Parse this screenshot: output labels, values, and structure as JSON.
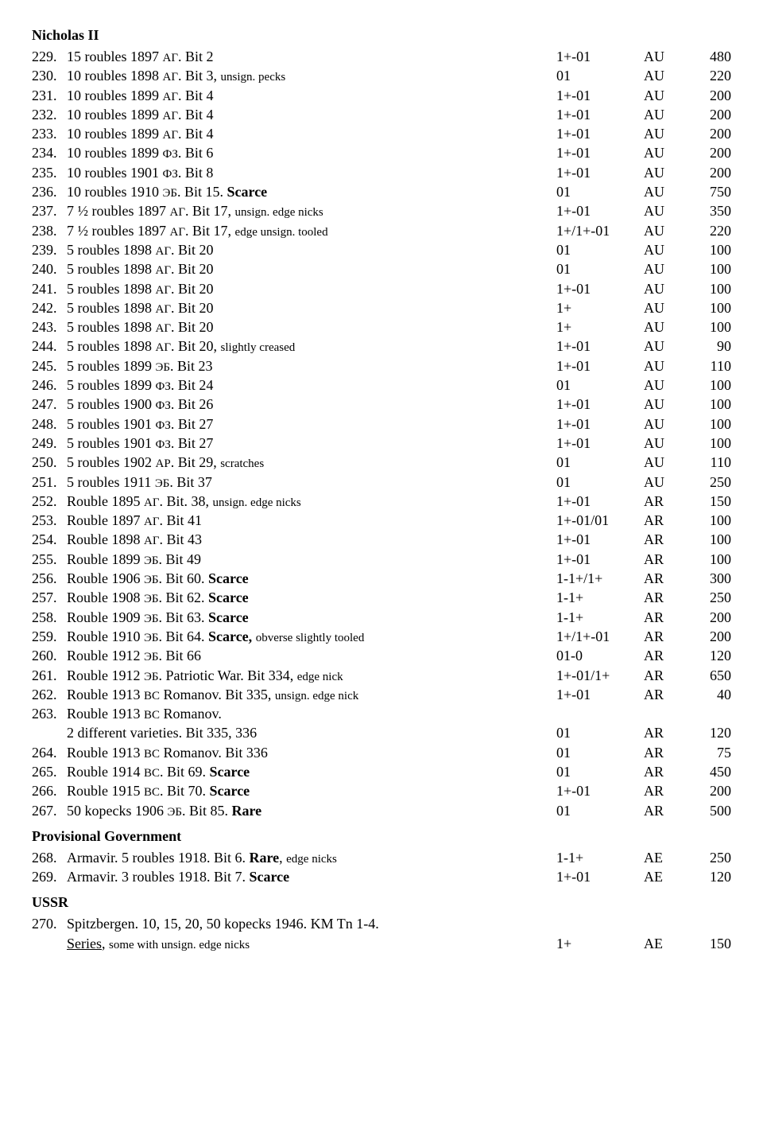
{
  "sections": [
    {
      "heading": "Nicholas II",
      "rows": [
        {
          "n": "229.",
          "desc": [
            {
              "t": "15 roubles 1897 "
            },
            {
              "t": "АГ",
              "small": true
            },
            {
              "t": ". Bit 2"
            }
          ],
          "g": "1+-01",
          "m": "AU",
          "p": "480"
        },
        {
          "n": "230.",
          "desc": [
            {
              "t": "10 roubles 1898 "
            },
            {
              "t": "АГ",
              "small": true
            },
            {
              "t": ". Bit 3, "
            },
            {
              "t": "unsign. pecks",
              "small": true
            }
          ],
          "g": "01",
          "m": "AU",
          "p": "220"
        },
        {
          "n": "231.",
          "desc": [
            {
              "t": "10 roubles 1899 "
            },
            {
              "t": "АГ",
              "small": true
            },
            {
              "t": ". Bit 4"
            }
          ],
          "g": "1+-01",
          "m": "AU",
          "p": "200"
        },
        {
          "n": "232.",
          "desc": [
            {
              "t": "10 roubles 1899 "
            },
            {
              "t": "АГ",
              "small": true
            },
            {
              "t": ". Bit 4"
            }
          ],
          "g": "1+-01",
          "m": "AU",
          "p": "200"
        },
        {
          "n": "233.",
          "desc": [
            {
              "t": "10 roubles 1899 "
            },
            {
              "t": "АГ",
              "small": true
            },
            {
              "t": ". Bit 4"
            }
          ],
          "g": "1+-01",
          "m": "AU",
          "p": "200"
        },
        {
          "n": "234.",
          "desc": [
            {
              "t": "10 roubles 1899 "
            },
            {
              "t": "ФЗ",
              "small": true
            },
            {
              "t": ". Bit 6"
            }
          ],
          "g": "1+-01",
          "m": "AU",
          "p": "200"
        },
        {
          "n": "235.",
          "desc": [
            {
              "t": "10 roubles 1901 "
            },
            {
              "t": "ФЗ",
              "small": true
            },
            {
              "t": ". Bit 8"
            }
          ],
          "g": "1+-01",
          "m": "AU",
          "p": "200"
        },
        {
          "n": "236.",
          "desc": [
            {
              "t": "10 roubles 1910 "
            },
            {
              "t": "ЭБ",
              "small": true
            },
            {
              "t": ". Bit 15. "
            },
            {
              "t": "Scarce",
              "b": true
            }
          ],
          "g": "01",
          "m": "AU",
          "p": "750"
        },
        {
          "n": "237.",
          "desc": [
            {
              "t": "7 ½ roubles 1897 "
            },
            {
              "t": "АГ",
              "small": true
            },
            {
              "t": ". Bit 17, "
            },
            {
              "t": "unsign. edge nicks",
              "small": true
            }
          ],
          "g": "1+-01",
          "m": "AU",
          "p": "350"
        },
        {
          "n": "238.",
          "desc": [
            {
              "t": "7 ½ roubles 1897 "
            },
            {
              "t": "АГ",
              "small": true
            },
            {
              "t": ". Bit 17, "
            },
            {
              "t": "edge unsign. tooled",
              "small": true
            }
          ],
          "g": "1+/1+-01",
          "m": "AU",
          "p": "220"
        },
        {
          "n": "239.",
          "desc": [
            {
              "t": "5 roubles 1898 "
            },
            {
              "t": "АГ",
              "small": true
            },
            {
              "t": ". Bit 20"
            }
          ],
          "g": "01",
          "m": "AU",
          "p": "100"
        },
        {
          "n": "240.",
          "desc": [
            {
              "t": "5 roubles 1898 "
            },
            {
              "t": "АГ",
              "small": true
            },
            {
              "t": ". Bit 20"
            }
          ],
          "g": "01",
          "m": "AU",
          "p": "100"
        },
        {
          "n": "241.",
          "desc": [
            {
              "t": "5 roubles 1898 "
            },
            {
              "t": "АГ",
              "small": true
            },
            {
              "t": ". Bit 20"
            }
          ],
          "g": "1+-01",
          "m": "AU",
          "p": "100"
        },
        {
          "n": "242.",
          "desc": [
            {
              "t": "5 roubles 1898 "
            },
            {
              "t": "АГ",
              "small": true
            },
            {
              "t": ". Bit 20"
            }
          ],
          "g": "1+",
          "m": "AU",
          "p": "100"
        },
        {
          "n": "243.",
          "desc": [
            {
              "t": "5 roubles 1898 "
            },
            {
              "t": "АГ",
              "small": true
            },
            {
              "t": ". Bit 20"
            }
          ],
          "g": "1+",
          "m": "AU",
          "p": "100"
        },
        {
          "n": "244.",
          "desc": [
            {
              "t": "5 roubles 1898 "
            },
            {
              "t": "АГ",
              "small": true
            },
            {
              "t": ". Bit 20, "
            },
            {
              "t": "slightly creased",
              "small": true
            }
          ],
          "g": "1+-01",
          "m": "AU",
          "p": "90"
        },
        {
          "n": "245.",
          "desc": [
            {
              "t": "5 roubles 1899 "
            },
            {
              "t": "ЭБ",
              "small": true
            },
            {
              "t": ". Bit 23"
            }
          ],
          "g": "1+-01",
          "m": "AU",
          "p": "110"
        },
        {
          "n": "246.",
          "desc": [
            {
              "t": "5 roubles 1899 "
            },
            {
              "t": "ФЗ",
              "small": true
            },
            {
              "t": ". Bit 24"
            }
          ],
          "g": "01",
          "m": "AU",
          "p": "100"
        },
        {
          "n": "247.",
          "desc": [
            {
              "t": "5 roubles 1900 "
            },
            {
              "t": "ФЗ",
              "small": true
            },
            {
              "t": ". Bit 26"
            }
          ],
          "g": "1+-01",
          "m": "AU",
          "p": "100"
        },
        {
          "n": "248.",
          "desc": [
            {
              "t": "5 roubles 1901 "
            },
            {
              "t": "ФЗ",
              "small": true
            },
            {
              "t": ". Bit 27"
            }
          ],
          "g": "1+-01",
          "m": "AU",
          "p": "100"
        },
        {
          "n": "249.",
          "desc": [
            {
              "t": "5 roubles 1901 "
            },
            {
              "t": "ФЗ",
              "small": true
            },
            {
              "t": ". Bit 27"
            }
          ],
          "g": "1+-01",
          "m": "AU",
          "p": "100"
        },
        {
          "n": "250.",
          "desc": [
            {
              "t": "5 roubles 1902 "
            },
            {
              "t": "АР",
              "small": true
            },
            {
              "t": ". Bit 29, "
            },
            {
              "t": "scratches",
              "small": true
            }
          ],
          "g": "01",
          "m": "AU",
          "p": "110"
        },
        {
          "n": "251.",
          "desc": [
            {
              "t": "5 roubles 1911 "
            },
            {
              "t": "ЭБ",
              "small": true
            },
            {
              "t": ". Bit 37"
            }
          ],
          "g": "01",
          "m": "AU",
          "p": "250"
        },
        {
          "n": "252.",
          "desc": [
            {
              "t": "Rouble 1895 "
            },
            {
              "t": "АГ",
              "small": true
            },
            {
              "t": ". Bit. 38, "
            },
            {
              "t": "unsign. edge nicks",
              "small": true
            }
          ],
          "g": "1+-01",
          "m": "AR",
          "p": "150"
        },
        {
          "n": "253.",
          "desc": [
            {
              "t": "Rouble 1897 "
            },
            {
              "t": "АГ",
              "small": true
            },
            {
              "t": ". Bit 41"
            }
          ],
          "g": "1+-01/01",
          "m": "AR",
          "p": "100"
        },
        {
          "n": "254.",
          "desc": [
            {
              "t": "Rouble 1898 "
            },
            {
              "t": "АГ",
              "small": true
            },
            {
              "t": ". Bit 43"
            }
          ],
          "g": "1+-01",
          "m": "AR",
          "p": "100"
        },
        {
          "n": "255.",
          "desc": [
            {
              "t": "Rouble 1899 "
            },
            {
              "t": "ЭБ",
              "small": true
            },
            {
              "t": ". Bit 49"
            }
          ],
          "g": "1+-01",
          "m": "AR",
          "p": "100"
        },
        {
          "n": "256.",
          "desc": [
            {
              "t": "Rouble 1906 "
            },
            {
              "t": "ЭБ",
              "small": true
            },
            {
              "t": ". Bit 60. "
            },
            {
              "t": "Scarce",
              "b": true
            }
          ],
          "g": "1-1+/1+",
          "m": "AR",
          "p": "300"
        },
        {
          "n": "257.",
          "desc": [
            {
              "t": "Rouble 1908 "
            },
            {
              "t": "ЭБ",
              "small": true
            },
            {
              "t": ". Bit 62. "
            },
            {
              "t": "Scarce",
              "b": true
            }
          ],
          "g": "1-1+",
          "m": "AR",
          "p": "250"
        },
        {
          "n": "258.",
          "desc": [
            {
              "t": "Rouble 1909 "
            },
            {
              "t": "ЭБ",
              "small": true
            },
            {
              "t": ". Bit 63. "
            },
            {
              "t": "Scarce",
              "b": true
            }
          ],
          "g": "1-1+",
          "m": "AR",
          "p": "200"
        },
        {
          "n": "259.",
          "desc": [
            {
              "t": "Rouble 1910 "
            },
            {
              "t": "ЭБ",
              "small": true
            },
            {
              "t": ". Bit 64. "
            },
            {
              "t": "Scarce, ",
              "b": true
            },
            {
              "t": "obverse slightly tooled",
              "small": true
            }
          ],
          "g": "1+/1+-01",
          "m": "AR",
          "p": "200"
        },
        {
          "n": "260.",
          "desc": [
            {
              "t": "Rouble 1912 "
            },
            {
              "t": "ЭБ",
              "small": true
            },
            {
              "t": ". Bit 66"
            }
          ],
          "g": "01-0",
          "m": "AR",
          "p": "120"
        },
        {
          "n": "261.",
          "desc": [
            {
              "t": "Rouble 1912 "
            },
            {
              "t": "ЭБ",
              "small": true
            },
            {
              "t": ". Patriotic War. Bit 334, "
            },
            {
              "t": "edge nick",
              "small": true
            }
          ],
          "g": "1+-01/1+",
          "m": "AR",
          "p": "650"
        },
        {
          "n": "262.",
          "desc": [
            {
              "t": "Rouble 1913 "
            },
            {
              "t": "ВС",
              "small": true
            },
            {
              "t": " Romanov. Bit 335, "
            },
            {
              "t": "unsign. edge nick",
              "small": true
            }
          ],
          "g": "1+-01",
          "m": "AR",
          "p": "40"
        },
        {
          "n": "263.",
          "desc": [
            {
              "t": "Rouble 1913 "
            },
            {
              "t": "ВС",
              "small": true
            },
            {
              "t": " Romanov."
            }
          ],
          "cont": true
        },
        {
          "n": "",
          "desc": [
            {
              "t": "2 different varieties. Bit 335, 336"
            }
          ],
          "g": "01",
          "m": "AR",
          "p": "120"
        },
        {
          "n": "264.",
          "desc": [
            {
              "t": "Rouble 1913 "
            },
            {
              "t": "ВС",
              "small": true
            },
            {
              "t": " Romanov. Bit 336"
            }
          ],
          "g": "01",
          "m": "AR",
          "p": "75"
        },
        {
          "n": "265.",
          "desc": [
            {
              "t": "Rouble 1914 "
            },
            {
              "t": "ВС",
              "small": true
            },
            {
              "t": ". Bit 69. "
            },
            {
              "t": "Scarce",
              "b": true
            }
          ],
          "g": "01",
          "m": "AR",
          "p": "450"
        },
        {
          "n": "266.",
          "desc": [
            {
              "t": "Rouble 1915 "
            },
            {
              "t": "ВС",
              "small": true
            },
            {
              "t": ". Bit 70. "
            },
            {
              "t": "Scarce",
              "b": true
            }
          ],
          "g": "1+-01",
          "m": "AR",
          "p": "200"
        },
        {
          "n": "267.",
          "desc": [
            {
              "t": "50 kopecks 1906 "
            },
            {
              "t": "ЭБ",
              "small": true
            },
            {
              "t": ". Bit 85. "
            },
            {
              "t": "Rare",
              "b": true
            }
          ],
          "g": "01",
          "m": "AR",
          "p": "500"
        }
      ]
    },
    {
      "heading": "Provisional Government",
      "rows": [
        {
          "n": "268.",
          "desc": [
            {
              "t": "Armavir. 5 roubles 1918. Bit 6. "
            },
            {
              "t": "Rare",
              "b": true
            },
            {
              "t": ", "
            },
            {
              "t": "edge nicks",
              "small": true
            }
          ],
          "g": "1-1+",
          "m": "AE",
          "p": "250"
        },
        {
          "n": "269.",
          "desc": [
            {
              "t": "Armavir. 3 roubles 1918. Bit 7. "
            },
            {
              "t": "Scarce",
              "b": true
            }
          ],
          "g": "1+-01",
          "m": "AE",
          "p": "120"
        }
      ]
    },
    {
      "heading": "USSR",
      "rows": [
        {
          "n": "270.",
          "desc": [
            {
              "t": "Spitzbergen. 10, 15, 20, 50 kopecks 1946. KM Tn 1-4."
            }
          ],
          "cont": true
        },
        {
          "n": "",
          "desc": [
            {
              "t": "Series",
              "u": true
            },
            {
              "t": ", "
            },
            {
              "t": "some with unsign. edge nicks",
              "small": true
            }
          ],
          "g": "1+",
          "m": "AE",
          "p": "150"
        }
      ]
    }
  ]
}
